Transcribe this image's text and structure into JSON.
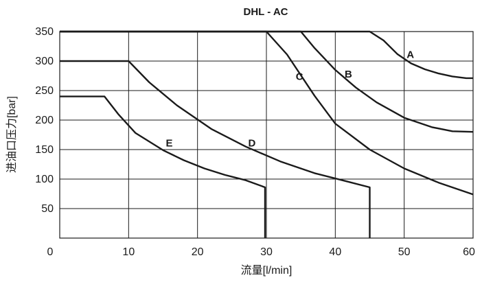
{
  "chart_data": {
    "type": "line",
    "title": "DHL - AC",
    "xlabel": "流量[l/min]",
    "ylabel": "进油口压力[bar]",
    "xlim": [
      0,
      60
    ],
    "ylim": [
      0,
      350
    ],
    "x_ticks": [
      "0",
      "10",
      "20",
      "30",
      "40",
      "50",
      "60"
    ],
    "y_ticks": [
      "50",
      "100",
      "150",
      "200",
      "250",
      "300",
      "350"
    ],
    "grid": true,
    "series": [
      {
        "name": "A",
        "points": [
          [
            0,
            350
          ],
          [
            45,
            350
          ],
          [
            47,
            335
          ],
          [
            49,
            312
          ],
          [
            51,
            296
          ],
          [
            53,
            286
          ],
          [
            55,
            279
          ],
          [
            57,
            274
          ],
          [
            59,
            271
          ],
          [
            60,
            271
          ]
        ]
      },
      {
        "name": "B",
        "points": [
          [
            0,
            350
          ],
          [
            35,
            350
          ],
          [
            37,
            322
          ],
          [
            40,
            285
          ],
          [
            43,
            255
          ],
          [
            46,
            230
          ],
          [
            50,
            204
          ],
          [
            54,
            188
          ],
          [
            57,
            181
          ],
          [
            60,
            180
          ]
        ]
      },
      {
        "name": "C",
        "points": [
          [
            0,
            350
          ],
          [
            30,
            350
          ],
          [
            33,
            311
          ],
          [
            37,
            241
          ],
          [
            40,
            194
          ],
          [
            45,
            150
          ],
          [
            50,
            118
          ],
          [
            55,
            94
          ],
          [
            60,
            74
          ]
        ]
      },
      {
        "name": "D",
        "points": [
          [
            0,
            300
          ],
          [
            10,
            300
          ],
          [
            13,
            264
          ],
          [
            17,
            225
          ],
          [
            22,
            185
          ],
          [
            27,
            155
          ],
          [
            32,
            130
          ],
          [
            37,
            110
          ],
          [
            40,
            101
          ],
          [
            45,
            86
          ],
          [
            45,
            0
          ]
        ]
      },
      {
        "name": "E",
        "points": [
          [
            0,
            240
          ],
          [
            6.5,
            240
          ],
          [
            8.5,
            210
          ],
          [
            11,
            178
          ],
          [
            15,
            149
          ],
          [
            18,
            132
          ],
          [
            21,
            118
          ],
          [
            24,
            107
          ],
          [
            27,
            98
          ],
          [
            29.8,
            86
          ],
          [
            29.8,
            0
          ]
        ]
      }
    ],
    "annotations": [
      {
        "text": "A",
        "x": 50.9,
        "y": 305
      },
      {
        "text": "B",
        "x": 41.9,
        "y": 272
      },
      {
        "text": "C",
        "x": 34.8,
        "y": 268
      },
      {
        "text": "D",
        "x": 27.9,
        "y": 155
      },
      {
        "text": "E",
        "x": 15.9,
        "y": 155
      }
    ]
  }
}
